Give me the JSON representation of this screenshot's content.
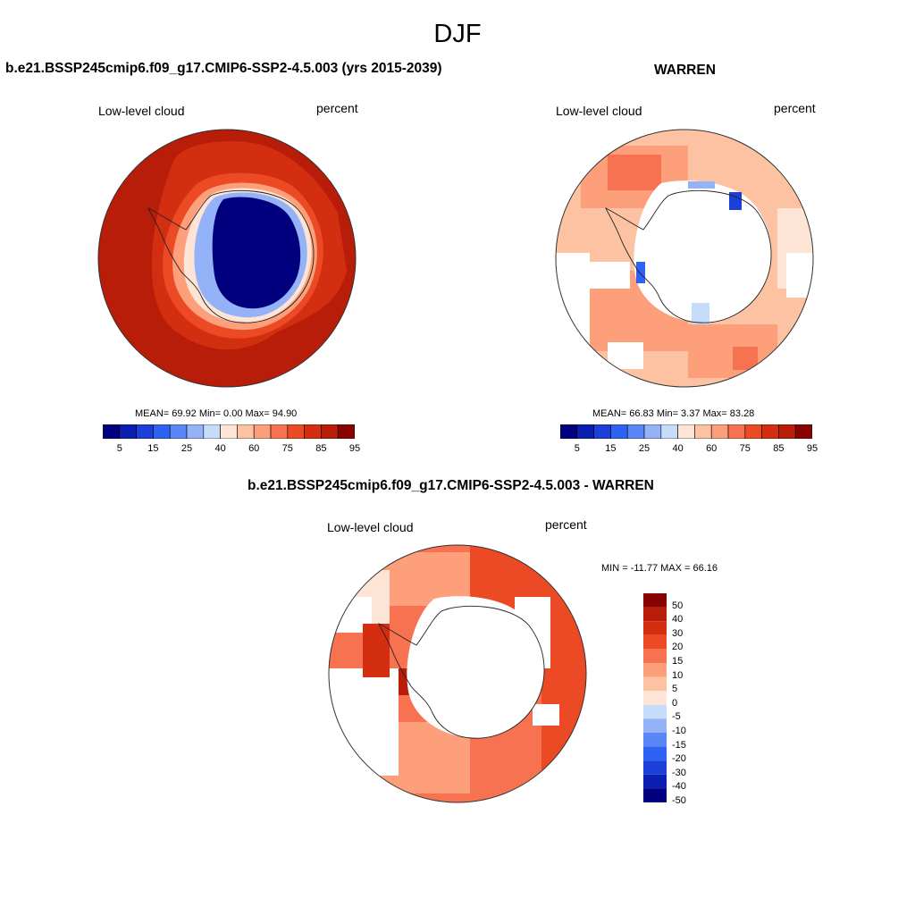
{
  "figure_title": "DJF",
  "colors": {
    "abs_levels": [
      "#00007f",
      "#0a1fb0",
      "#1b3fd8",
      "#2e62f2",
      "#5a86f7",
      "#93b2f8",
      "#c7dbfb",
      "#fde4d4",
      "#fdc2a2",
      "#fc9f7a",
      "#f67250",
      "#ec4a25",
      "#d42e10",
      "#b81d0a",
      "#8a0303"
    ],
    "diff_levels": [
      "#00007f",
      "#0a1fb0",
      "#1b3fd8",
      "#2e62f2",
      "#5a86f7",
      "#93b2f8",
      "#c7dbfb",
      "#fde4d4",
      "#fdc2a2",
      "#fc9f7a",
      "#f67250",
      "#ec4a25",
      "#d42e10",
      "#b81d0a",
      "#8a0303"
    ]
  },
  "panels": [
    {
      "title": "b.e21.BSSP245cmip6.f09_g17.CMIP6-SSP2-4.5.003 (yrs 2015-2039)",
      "left_label": "Low-level cloud",
      "right_label": "percent",
      "stats": "MEAN=  69.92  Min=   0.00  Max=  94.90",
      "colorbar_ticks": [
        "5",
        "15",
        "25",
        "40",
        "60",
        "75",
        "85",
        "95"
      ]
    },
    {
      "title": "WARREN",
      "left_label": "Low-level cloud",
      "right_label": "percent",
      "stats": "MEAN=  66.83  Min=   3.37  Max=  83.28",
      "colorbar_ticks": [
        "5",
        "15",
        "25",
        "40",
        "60",
        "75",
        "85",
        "95"
      ]
    },
    {
      "title": "b.e21.BSSP245cmip6.f09_g17.CMIP6-SSP2-4.5.003 - WARREN",
      "left_label": "Low-level cloud",
      "right_label": "percent",
      "stats": "MIN = -11.77 MAX =  66.16",
      "colorbar_ticks": [
        "50",
        "40",
        "30",
        "20",
        "15",
        "10",
        "5",
        "0",
        "-5",
        "-10",
        "-15",
        "-20",
        "-30",
        "-40",
        "-50"
      ]
    }
  ]
}
